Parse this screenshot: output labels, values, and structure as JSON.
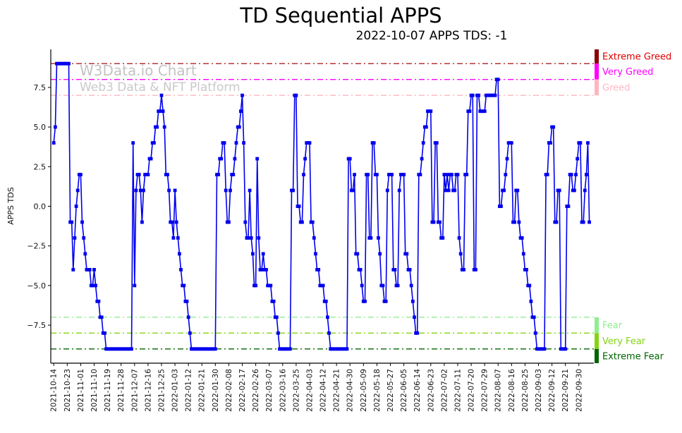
{
  "page": {
    "title": "TD Sequential APPS",
    "subtitle": "2022-10-07 APPS TDS: -1"
  },
  "watermark": {
    "line1": "W3Data.io Chart",
    "line2": "Web3 Data & NFT Platform"
  },
  "chart_data": {
    "type": "line",
    "title": "TD Sequential APPS",
    "subtitle": "2022-10-07 APPS TDS: -1",
    "xlabel": "",
    "ylabel": "APPS TDS",
    "ylim": [
      -9.9,
      9.9
    ],
    "yticks": [
      7.5,
      5,
      2.5,
      0,
      -2.5,
      -5,
      -7.5
    ],
    "grid": false,
    "legend": "none",
    "x_start_date": "2021-10-14",
    "x_end_date": "2022-10-07",
    "x_frequency": "daily",
    "xtick_step_days": 9,
    "xtick_labels": [
      "2021-10-14",
      "2021-10-23",
      "2021-11-01",
      "2021-11-10",
      "2021-11-19",
      "2021-11-28",
      "2021-12-07",
      "2021-12-16",
      "2021-12-25",
      "2022-01-03",
      "2022-01-12",
      "2022-01-21",
      "2022-01-30",
      "2022-02-08",
      "2022-02-17",
      "2022-02-26",
      "2022-03-07",
      "2022-03-16",
      "2022-03-25",
      "2022-04-03",
      "2022-04-12",
      "2022-04-21",
      "2022-04-30",
      "2022-05-09",
      "2022-05-18",
      "2022-05-27",
      "2022-06-05",
      "2022-06-14",
      "2022-06-23",
      "2022-07-02",
      "2022-07-11",
      "2022-07-20",
      "2022-07-29",
      "2022-08-07",
      "2022-08-16",
      "2022-08-25",
      "2022-09-03",
      "2022-09-12",
      "2022-09-21",
      "2022-09-30"
    ],
    "levels": [
      {
        "label": "Extreme Greed",
        "value": 9,
        "label_color": "#dd0000",
        "line_color": "#b22222",
        "bar_color": "#8b0000"
      },
      {
        "label": "Very Greed",
        "value": 8,
        "label_color": "#ff00ff",
        "line_color": "#ff00ff",
        "bar_color": "#ff00ff"
      },
      {
        "label": "Greed",
        "value": 7,
        "label_color": "#ffb6c1",
        "line_color": "#ffb6c1",
        "bar_color": "#ffb6c1"
      },
      {
        "label": "Fear",
        "value": -7,
        "label_color": "#90ee90",
        "line_color": "#90ee90",
        "bar_color": "#90ee90"
      },
      {
        "label": "Very Fear",
        "value": -8,
        "label_color": "#84d413",
        "line_color": "#84d413",
        "bar_color": "#84d413"
      },
      {
        "label": "Extreme Fear",
        "value": -9,
        "label_color": "#006400",
        "line_color": "#006400",
        "bar_color": "#006400"
      }
    ],
    "series": [
      {
        "name": "APPS TDS",
        "color": "#0000ee",
        "marker": "square",
        "values": [
          4,
          5,
          9,
          9,
          9,
          9,
          9,
          9,
          9,
          9,
          9,
          -1,
          -1,
          -4,
          -2,
          0,
          1,
          2,
          2,
          -1,
          -2,
          -3,
          -4,
          -4,
          -4,
          -5,
          -5,
          -4,
          -5,
          -6,
          -6,
          -7,
          -7,
          -8,
          -8,
          -9,
          -9,
          -9,
          -9,
          -9,
          -9,
          -9,
          -9,
          -9,
          -9,
          -9,
          -9,
          -9,
          -9,
          -9,
          -9,
          -9,
          -9,
          4,
          -5,
          1,
          2,
          2,
          1,
          -1,
          1,
          2,
          2,
          2,
          3,
          3,
          4,
          4,
          5,
          5,
          6,
          6,
          7,
          6,
          5,
          2,
          2,
          1,
          -1,
          -1,
          -2,
          1,
          -1,
          -2,
          -3,
          -4,
          -5,
          -5,
          -6,
          -6,
          -7,
          -8,
          -9,
          -9,
          -9,
          -9,
          -9,
          -9,
          -9,
          -9,
          -9,
          -9,
          -9,
          -9,
          -9,
          -9,
          -9,
          -9,
          -9,
          2,
          2,
          3,
          3,
          4,
          4,
          1,
          -1,
          -1,
          1,
          2,
          2,
          3,
          4,
          5,
          5,
          6,
          7,
          4,
          -1,
          -2,
          -2,
          1,
          -2,
          -3,
          -5,
          -5,
          3,
          -2,
          -4,
          -4,
          -3,
          -4,
          -4,
          -5,
          -5,
          -5,
          -6,
          -6,
          -7,
          -7,
          -8,
          -9,
          -9,
          -9,
          -9,
          -9,
          -9,
          -9,
          -9,
          1,
          1,
          7,
          7,
          0,
          0,
          -1,
          -1,
          2,
          3,
          4,
          4,
          4,
          -1,
          -1,
          -2,
          -3,
          -4,
          -4,
          -5,
          -5,
          -5,
          -6,
          -6,
          -7,
          -8,
          -9,
          -9,
          -9,
          -9,
          -9,
          -9,
          -9,
          -9,
          -9,
          -9,
          -9,
          -9,
          3,
          3,
          1,
          1,
          2,
          -3,
          -3,
          -4,
          -4,
          -5,
          -6,
          -6,
          2,
          2,
          -2,
          -2,
          4,
          4,
          2,
          2,
          -2,
          -3,
          -5,
          -5,
          -6,
          -6,
          1,
          2,
          2,
          2,
          -4,
          -4,
          -5,
          -5,
          1,
          2,
          2,
          2,
          -3,
          -3,
          -4,
          -4,
          -5,
          -6,
          -7,
          -8,
          -8,
          2,
          2,
          3,
          4,
          5,
          5,
          6,
          6,
          6,
          -1,
          -1,
          4,
          4,
          -1,
          -1,
          -2,
          -2,
          2,
          1,
          2,
          1,
          2,
          2,
          1,
          1,
          2,
          2,
          -2,
          -3,
          -4,
          -4,
          2,
          2,
          6,
          6,
          7,
          7,
          -4,
          -4,
          7,
          7,
          6,
          6,
          6,
          6,
          7,
          7,
          7,
          7,
          7,
          7,
          7,
          8,
          8,
          0,
          0,
          1,
          1,
          2,
          3,
          4,
          4,
          4,
          -1,
          -1,
          1,
          1,
          -1,
          -2,
          -2,
          -3,
          -4,
          -4,
          -5,
          -5,
          -6,
          -7,
          -7,
          -8,
          -9,
          -9,
          -9,
          -9,
          -9,
          -9,
          2,
          2,
          4,
          4,
          5,
          5,
          -1,
          -1,
          1,
          1,
          -9,
          -9,
          -9,
          -9,
          0,
          0,
          2,
          2,
          1,
          1,
          2,
          3,
          4,
          4,
          -1,
          -1,
          1,
          2,
          4,
          -1
        ]
      }
    ]
  }
}
